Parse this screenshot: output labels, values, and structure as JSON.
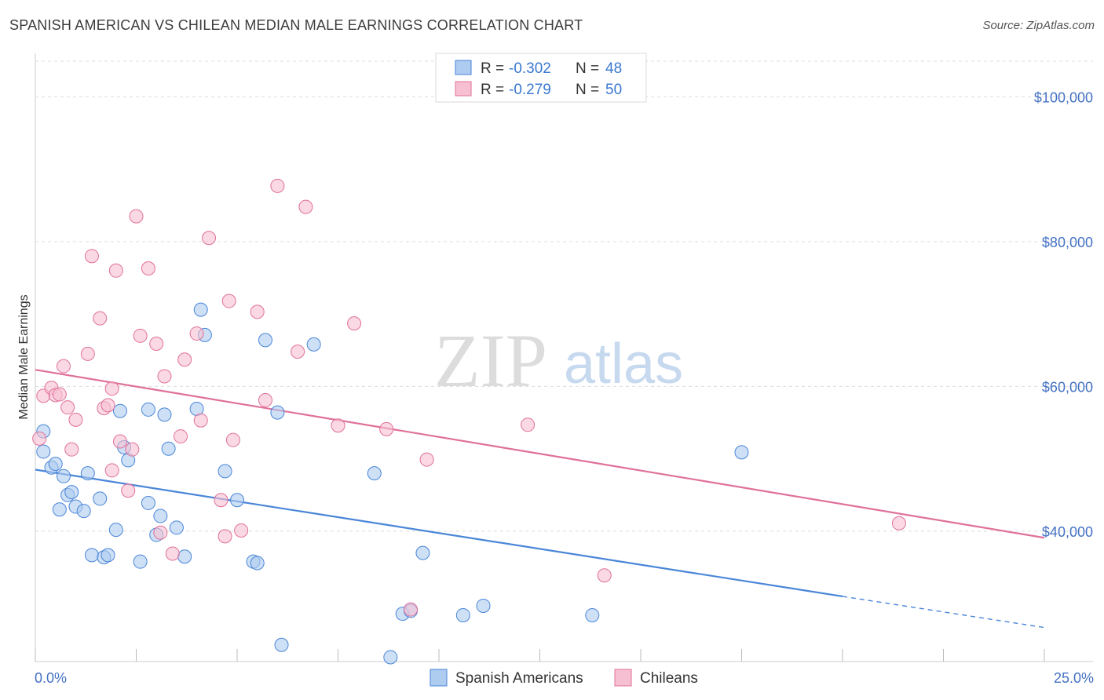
{
  "header": {
    "title": "SPANISH AMERICAN VS CHILEAN MEDIAN MALE EARNINGS CORRELATION CHART",
    "source": "Source: ZipAtlas.com"
  },
  "watermark": {
    "zip": "ZIP",
    "atlas": "atlas"
  },
  "legend_box": {
    "rows": [
      {
        "r_label": "R = ",
        "r_value": "-0.302",
        "n_label": "N = ",
        "n_value": "48",
        "color": "#aecbf0"
      },
      {
        "r_label": "R = ",
        "r_value": "-0.279",
        "n_label": "N = ",
        "n_value": "50",
        "color": "#f7bfd2"
      }
    ]
  },
  "chart_data": {
    "type": "scatter",
    "title": "SPANISH AMERICAN VS CHILEAN MEDIAN MALE EARNINGS CORRELATION CHART",
    "ylabel": "Median Male Earnings",
    "xlim": [
      0,
      25
    ],
    "ylim": [
      22000,
      106000
    ],
    "x_tick_labels": [
      "0.0%",
      "25.0%"
    ],
    "y_ticks": [
      40000,
      60000,
      80000,
      100000
    ],
    "y_tick_labels": [
      "$40,000",
      "$60,000",
      "$80,000",
      "$100,000"
    ],
    "grid": true,
    "legend_position": "bottom",
    "series": [
      {
        "name": "Spanish Americans",
        "color": "#4a86d8",
        "fill": "#aecbf0",
        "R": -0.302,
        "N": 48,
        "trend": {
          "x": [
            0,
            20,
            25
          ],
          "y": [
            48500,
            31000,
            26700
          ],
          "solid_until": 20
        },
        "points": [
          [
            0.2,
            51000
          ],
          [
            0.2,
            53800
          ],
          [
            0.4,
            48800
          ],
          [
            0.5,
            49300
          ],
          [
            0.6,
            43000
          ],
          [
            0.7,
            47600
          ],
          [
            0.8,
            45000
          ],
          [
            0.9,
            45400
          ],
          [
            1.0,
            43400
          ],
          [
            1.2,
            42800
          ],
          [
            1.3,
            48000
          ],
          [
            1.4,
            36700
          ],
          [
            1.6,
            44500
          ],
          [
            1.7,
            36400
          ],
          [
            1.8,
            36700
          ],
          [
            2.0,
            40200
          ],
          [
            2.1,
            56600
          ],
          [
            2.2,
            51600
          ],
          [
            2.3,
            49800
          ],
          [
            2.6,
            35800
          ],
          [
            2.8,
            56800
          ],
          [
            2.8,
            43900
          ],
          [
            3.0,
            39500
          ],
          [
            3.1,
            42100
          ],
          [
            3.2,
            56100
          ],
          [
            3.3,
            51400
          ],
          [
            3.5,
            40500
          ],
          [
            3.7,
            36500
          ],
          [
            4.0,
            56900
          ],
          [
            4.1,
            70600
          ],
          [
            4.2,
            67100
          ],
          [
            4.7,
            48300
          ],
          [
            5.0,
            44300
          ],
          [
            5.4,
            35800
          ],
          [
            5.5,
            35600
          ],
          [
            5.7,
            66400
          ],
          [
            6.0,
            56400
          ],
          [
            6.1,
            24300
          ],
          [
            6.9,
            65800
          ],
          [
            8.4,
            48000
          ],
          [
            8.8,
            22600
          ],
          [
            9.1,
            28600
          ],
          [
            9.3,
            29000
          ],
          [
            9.6,
            37000
          ],
          [
            10.6,
            28400
          ],
          [
            11.1,
            29700
          ],
          [
            13.8,
            28400
          ],
          [
            17.5,
            50900
          ]
        ]
      },
      {
        "name": "Chileans",
        "color": "#e0709a",
        "fill": "#f7bfd2",
        "R": -0.279,
        "N": 50,
        "trend": {
          "x": [
            0,
            25
          ],
          "y": [
            62300,
            39100
          ]
        },
        "points": [
          [
            0.1,
            52800
          ],
          [
            0.2,
            58700
          ],
          [
            0.4,
            59800
          ],
          [
            0.5,
            58800
          ],
          [
            0.6,
            58900
          ],
          [
            0.7,
            62800
          ],
          [
            0.8,
            57100
          ],
          [
            0.9,
            51300
          ],
          [
            1.0,
            55400
          ],
          [
            1.3,
            64500
          ],
          [
            1.4,
            78000
          ],
          [
            1.6,
            69400
          ],
          [
            1.7,
            57000
          ],
          [
            1.8,
            57400
          ],
          [
            1.9,
            48400
          ],
          [
            1.9,
            59700
          ],
          [
            2.0,
            76000
          ],
          [
            2.1,
            52400
          ],
          [
            2.3,
            45600
          ],
          [
            2.4,
            51300
          ],
          [
            2.5,
            83500
          ],
          [
            2.6,
            67000
          ],
          [
            2.8,
            76300
          ],
          [
            3.0,
            65900
          ],
          [
            3.1,
            39800
          ],
          [
            3.2,
            61400
          ],
          [
            3.4,
            36900
          ],
          [
            3.6,
            53100
          ],
          [
            3.7,
            63700
          ],
          [
            4.0,
            67300
          ],
          [
            4.1,
            55300
          ],
          [
            4.3,
            80500
          ],
          [
            4.6,
            44300
          ],
          [
            4.7,
            39300
          ],
          [
            4.8,
            71800
          ],
          [
            4.9,
            52600
          ],
          [
            5.1,
            40100
          ],
          [
            5.5,
            70300
          ],
          [
            5.7,
            58100
          ],
          [
            6.0,
            87700
          ],
          [
            6.5,
            64800
          ],
          [
            6.7,
            84800
          ],
          [
            7.5,
            54600
          ],
          [
            7.9,
            68700
          ],
          [
            8.7,
            54100
          ],
          [
            9.3,
            29200
          ],
          [
            9.7,
            49900
          ],
          [
            12.2,
            54700
          ],
          [
            14.1,
            33900
          ],
          [
            21.4,
            41100
          ]
        ]
      }
    ]
  },
  "bottom_legend": {
    "items": [
      {
        "label": "Spanish Americans",
        "fill": "#aecbf0",
        "stroke": "#4a86d8"
      },
      {
        "label": "Chileans",
        "fill": "#f7bfd2",
        "stroke": "#e0709a"
      }
    ]
  }
}
